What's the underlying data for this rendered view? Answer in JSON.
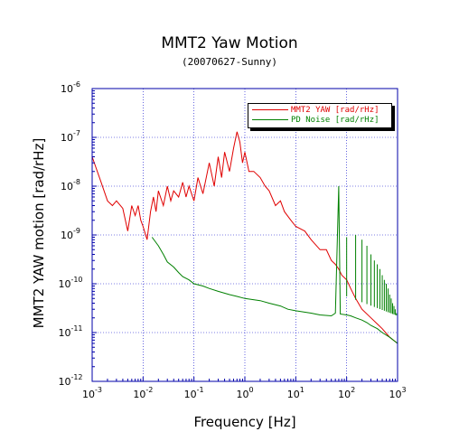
{
  "chart_data": {
    "type": "line",
    "title": "MMT2 Yaw Motion",
    "subtitle": "(20070627-Sunny)",
    "xlabel": "Frequency [Hz]",
    "ylabel": "MMT2 YAW motion [rad/rHz]",
    "xscale": "log",
    "yscale": "log",
    "xlim": [
      0.001,
      1000
    ],
    "ylim": [
      1e-12,
      1e-06
    ],
    "x_ticks": [
      {
        "base": "10",
        "exp": "-3",
        "value": 0.001
      },
      {
        "base": "10",
        "exp": "-2",
        "value": 0.01
      },
      {
        "base": "10",
        "exp": "-1",
        "value": 0.1
      },
      {
        "base": "10",
        "exp": "0",
        "value": 1
      },
      {
        "base": "10",
        "exp": "1",
        "value": 10
      },
      {
        "base": "10",
        "exp": "2",
        "value": 100
      },
      {
        "base": "10",
        "exp": "3",
        "value": 1000
      }
    ],
    "y_ticks": [
      {
        "base": "10",
        "exp": "-12",
        "value": 1e-12
      },
      {
        "base": "10",
        "exp": "-11",
        "value": 1e-11
      },
      {
        "base": "10",
        "exp": "-10",
        "value": 1e-10
      },
      {
        "base": "10",
        "exp": "-9",
        "value": 1e-09
      },
      {
        "base": "10",
        "exp": "-8",
        "value": 1e-08
      },
      {
        "base": "10",
        "exp": "-7",
        "value": 1e-07
      },
      {
        "base": "10",
        "exp": "-6",
        "value": 1e-06
      }
    ],
    "grid": true,
    "legend_position": "top-right",
    "series": [
      {
        "name": "MMT2 YAW [rad/rHz]",
        "color": "#e00000",
        "points": [
          [
            0.001,
            4e-08
          ],
          [
            0.0015,
            1.2e-08
          ],
          [
            0.002,
            5e-09
          ],
          [
            0.0025,
            4e-09
          ],
          [
            0.003,
            5e-09
          ],
          [
            0.004,
            3.5e-09
          ],
          [
            0.005,
            1.2e-09
          ],
          [
            0.006,
            4e-09
          ],
          [
            0.007,
            2.5e-09
          ],
          [
            0.008,
            4e-09
          ],
          [
            0.009,
            2e-09
          ],
          [
            0.01,
            1.5e-09
          ],
          [
            0.012,
            8e-10
          ],
          [
            0.014,
            3e-09
          ],
          [
            0.016,
            6e-09
          ],
          [
            0.018,
            3e-09
          ],
          [
            0.02,
            8e-09
          ],
          [
            0.025,
            4e-09
          ],
          [
            0.03,
            1e-08
          ],
          [
            0.035,
            5e-09
          ],
          [
            0.04,
            8e-09
          ],
          [
            0.05,
            6e-09
          ],
          [
            0.06,
            1.2e-08
          ],
          [
            0.07,
            6e-09
          ],
          [
            0.08,
            1e-08
          ],
          [
            0.1,
            5e-09
          ],
          [
            0.12,
            1.5e-08
          ],
          [
            0.15,
            7e-09
          ],
          [
            0.2,
            3e-08
          ],
          [
            0.25,
            1e-08
          ],
          [
            0.3,
            4e-08
          ],
          [
            0.35,
            1.5e-08
          ],
          [
            0.4,
            5e-08
          ],
          [
            0.5,
            2e-08
          ],
          [
            0.6,
            6e-08
          ],
          [
            0.7,
            1.3e-07
          ],
          [
            0.8,
            8e-08
          ],
          [
            0.9,
            3e-08
          ],
          [
            1.0,
            5e-08
          ],
          [
            1.2,
            2e-08
          ],
          [
            1.5,
            2e-08
          ],
          [
            2,
            1.5e-08
          ],
          [
            2.5,
            1e-08
          ],
          [
            3,
            8e-09
          ],
          [
            4,
            4e-09
          ],
          [
            5,
            5e-09
          ],
          [
            6,
            3e-09
          ],
          [
            8,
            2e-09
          ],
          [
            10,
            1.5e-09
          ],
          [
            15,
            1.2e-09
          ],
          [
            20,
            8e-10
          ],
          [
            30,
            5e-10
          ],
          [
            40,
            5e-10
          ],
          [
            50,
            3e-10
          ],
          [
            60,
            2.5e-10
          ],
          [
            70,
            2e-10
          ],
          [
            80,
            1.5e-10
          ],
          [
            100,
            1.2e-10
          ],
          [
            120,
            8e-11
          ],
          [
            150,
            5e-11
          ],
          [
            200,
            3e-11
          ],
          [
            300,
            2e-11
          ],
          [
            400,
            1.5e-11
          ],
          [
            500,
            1.2e-11
          ],
          [
            700,
            8e-12
          ],
          [
            1000,
            6e-12
          ]
        ]
      },
      {
        "name": "PD Noise [rad/rHz]",
        "color": "#008000",
        "points": [
          [
            0.015,
            9e-10
          ],
          [
            0.02,
            6e-10
          ],
          [
            0.025,
            4e-10
          ],
          [
            0.03,
            2.8e-10
          ],
          [
            0.04,
            2.2e-10
          ],
          [
            0.05,
            1.7e-10
          ],
          [
            0.06,
            1.4e-10
          ],
          [
            0.08,
            1.2e-10
          ],
          [
            0.1,
            1e-10
          ],
          [
            0.15,
            9e-11
          ],
          [
            0.2,
            8e-11
          ],
          [
            0.3,
            7e-11
          ],
          [
            0.5,
            6e-11
          ],
          [
            0.7,
            5.5e-11
          ],
          [
            1,
            5e-11
          ],
          [
            2,
            4.5e-11
          ],
          [
            3,
            4e-11
          ],
          [
            5,
            3.5e-11
          ],
          [
            7,
            3e-11
          ],
          [
            10,
            2.8e-11
          ],
          [
            20,
            2.5e-11
          ],
          [
            30,
            2.3e-11
          ],
          [
            50,
            2.2e-11
          ],
          [
            60,
            2.5e-11
          ],
          [
            70,
            1e-08
          ],
          [
            75,
            2.4e-11
          ],
          [
            100,
            2.3e-11
          ],
          [
            120,
            2.2e-11
          ],
          [
            150,
            2e-11
          ],
          [
            200,
            1.8e-11
          ],
          [
            250,
            1.6e-11
          ],
          [
            300,
            1.4e-11
          ],
          [
            400,
            1.2e-11
          ],
          [
            500,
            1e-11
          ],
          [
            700,
            8e-12
          ],
          [
            1000,
            6e-12
          ]
        ],
        "harmonic_spikes": [
          [
            100,
            9e-10
          ],
          [
            150,
            1e-09
          ],
          [
            200,
            8e-10
          ],
          [
            250,
            6e-10
          ],
          [
            300,
            4e-10
          ],
          [
            350,
            3e-10
          ],
          [
            400,
            2.5e-10
          ],
          [
            450,
            2e-10
          ],
          [
            500,
            1.5e-10
          ],
          [
            550,
            1.2e-10
          ],
          [
            600,
            1e-10
          ],
          [
            650,
            8e-11
          ],
          [
            700,
            6e-11
          ],
          [
            750,
            5e-11
          ],
          [
            800,
            4e-11
          ],
          [
            850,
            3.5e-11
          ],
          [
            900,
            3e-11
          ],
          [
            950,
            2.5e-11
          ]
        ]
      }
    ]
  }
}
